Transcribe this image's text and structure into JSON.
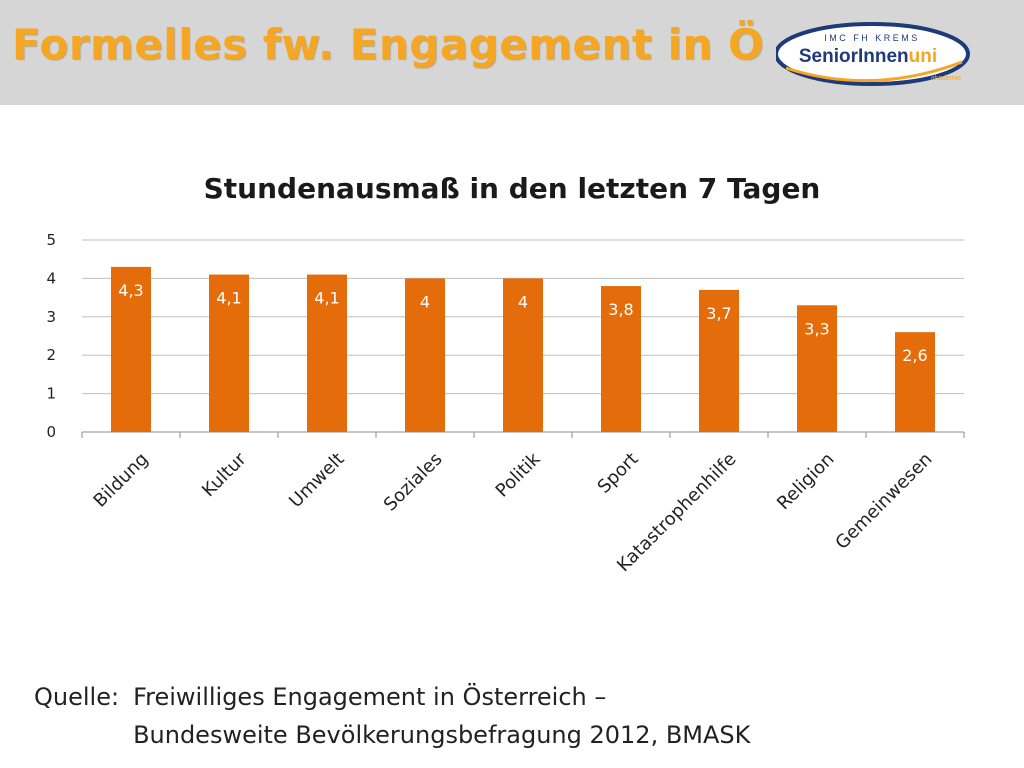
{
  "slide": {
    "title": "Formelles fw. Engagement in Ö"
  },
  "logo": {
    "org": "IMC FH KREMS",
    "name_main": "SeniorInnen",
    "name_accent": "uni",
    "tagline": "akademie"
  },
  "chart_data": {
    "type": "bar",
    "title": "Stundenausmaß in den letzten 7 Tagen",
    "xlabel": "",
    "ylabel": "",
    "categories": [
      "Bildung",
      "Kultur",
      "Umwelt",
      "Soziales",
      "Politik",
      "Sport",
      "Katastrophenhilfe",
      "Religion",
      "Gemeinwesen"
    ],
    "values": [
      4.3,
      4.1,
      4.1,
      4,
      4,
      3.8,
      3.7,
      3.3,
      2.6
    ],
    "value_labels": [
      "4,3",
      "4,1",
      "4,1",
      "4",
      "4",
      "3,8",
      "3,7",
      "3,3",
      "2,6"
    ],
    "y_ticks": [
      "0",
      "1",
      "2",
      "3",
      "4",
      "5"
    ],
    "ylim": [
      0,
      5
    ],
    "grid": true,
    "legend": "none",
    "bar_color": "#e46c0a"
  },
  "source": {
    "label": "Quelle:",
    "line1": "Freiwilliges Engagement in Österreich –",
    "line2": "Bundesweite Bevölkerungsbefragung 2012, BMASK"
  }
}
